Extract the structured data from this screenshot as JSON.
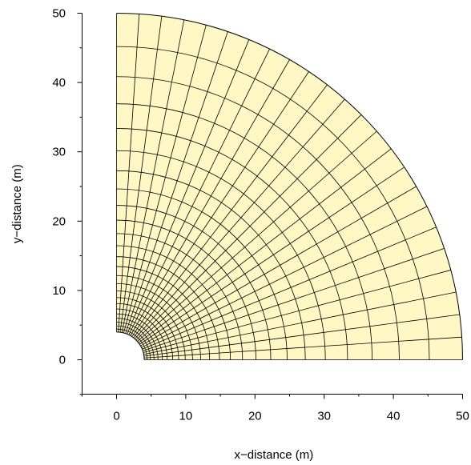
{
  "chart_data": {
    "type": "mesh",
    "title": "",
    "xlabel": "x−distance (m)",
    "ylabel": "y−distance (m)",
    "xlim": [
      -5,
      50
    ],
    "ylim": [
      -5,
      50
    ],
    "x_ticks": [
      0,
      10,
      20,
      30,
      40,
      50
    ],
    "y_ticks": [
      0,
      10,
      20,
      30,
      40,
      50
    ],
    "x_tick_labels": [
      "0",
      "10",
      "20",
      "30",
      "40",
      "50"
    ],
    "y_tick_labels": [
      "0",
      "10",
      "20",
      "30",
      "40",
      "50"
    ],
    "x_minor_ticks": [
      5,
      15,
      25,
      35,
      45
    ],
    "y_minor_ticks": [
      5,
      15,
      25,
      35,
      45
    ],
    "mesh": {
      "shape": "quarter-annulus",
      "center": [
        0,
        0
      ],
      "inner_radius": 4,
      "outer_radius": 50,
      "theta_range_deg": [
        0,
        90
      ],
      "angular_divisions": 24,
      "radial_divisions": 25,
      "radial_spacing": "geometric"
    },
    "colors": {
      "fill": "#fff8c4",
      "mesh_line": "#000000",
      "axis": "#000000"
    },
    "grid": false,
    "legend": "none"
  }
}
